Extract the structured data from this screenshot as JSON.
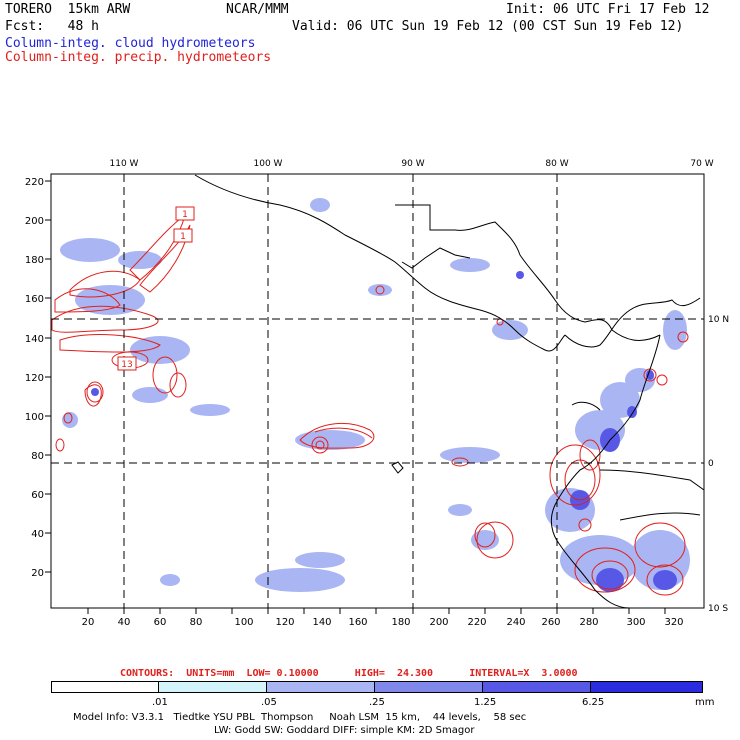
{
  "header": {
    "model_name": "TORERO  15km ARW",
    "org": "NCAR/MMM",
    "init": "Init: 06 UTC Fri 17 Feb 12",
    "forecast": "Fcst:   48 h",
    "valid": "Valid: 06 UTC Sun 19 Feb 12 (00 CST Sun 19 Feb 12)",
    "field_cloud": "Column-integ. cloud hydrometeors",
    "field_precip": "Column-integ. precip. hydrometeors"
  },
  "colors": {
    "cloud_text": "#1f25d6",
    "precip_text": "#e0201c",
    "contour": "#e0201c"
  },
  "map": {
    "y_ticks": [
      "220",
      "200",
      "180",
      "160",
      "140",
      "120",
      "100",
      "80",
      "60",
      "40",
      "20"
    ],
    "x_ticks": [
      "20",
      "40",
      "60",
      "80",
      "100",
      "120",
      "140",
      "160",
      "180",
      "200",
      "220",
      "240",
      "260",
      "280",
      "300",
      "320"
    ],
    "lon_labels": [
      "110 W",
      "100 W",
      "90 W",
      "80 W",
      "70 W"
    ],
    "lat_labels": [
      "10 N",
      "0",
      "10 S"
    ],
    "contour_labels": [
      "1",
      "1",
      "13"
    ]
  },
  "contour_info": "CONTOURS:  UNITS=mm  LOW= 0.10000      HIGH=  24.300      INTERVAL=X  3.0000",
  "colorbar": {
    "bins": [
      {
        "color": "#ffffff"
      },
      {
        "color": "#d3f4fb"
      },
      {
        "color": "#aab6f3"
      },
      {
        "color": "#8088ec"
      },
      {
        "color": "#5858e6"
      },
      {
        "color": "#2b2be0"
      }
    ],
    "labels": [
      ".01",
      ".05",
      ".25",
      "1.25",
      "6.25"
    ],
    "unit": "mm"
  },
  "model_info": {
    "line1": "Model Info: V3.3.1   Tiedtke YSU PBL  Thompson     Noah LSM  15 km,    44 levels,    58 sec",
    "line2": "LW: Godd SW: Goddard DIFF: simple KM: 2D Smagor"
  }
}
